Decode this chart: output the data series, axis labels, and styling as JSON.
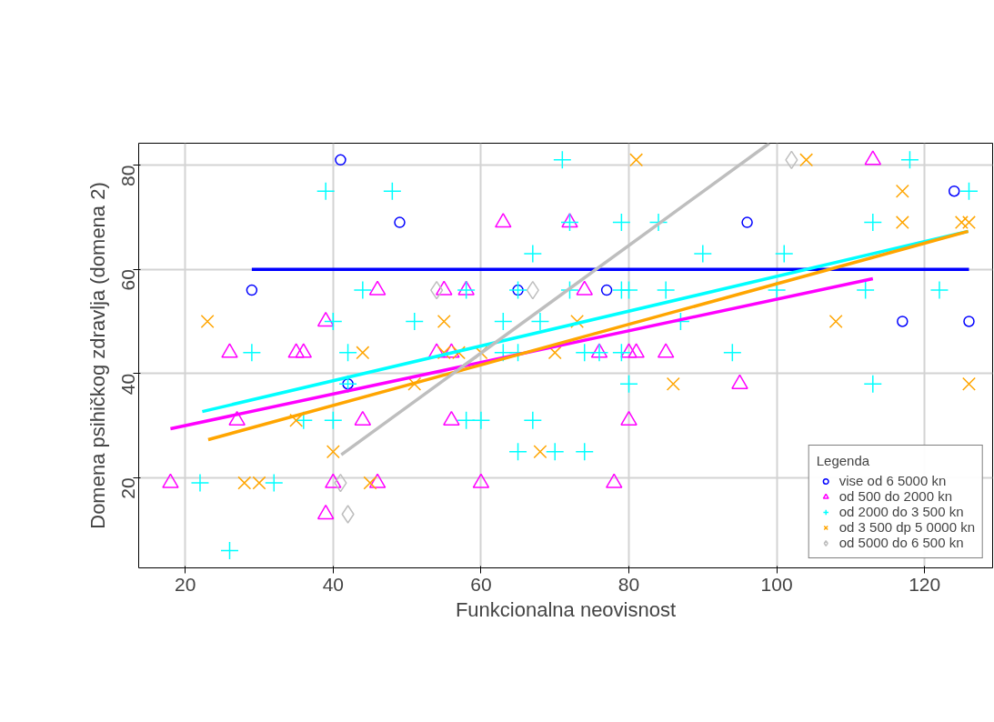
{
  "chart_data": {
    "type": "scatter",
    "xlabel": "Funkcionalna neovisnost",
    "ylabel": "Domena psihičkog zdravlja (domena 2)",
    "legend_title": "Legenda",
    "legend": "bottom right",
    "grid": true,
    "xlim": [
      13.7,
      129.2
    ],
    "ylim": [
      2.7,
      84.2
    ],
    "xticks": [
      20,
      40,
      60,
      80,
      100,
      120
    ],
    "yticks": [
      20,
      40,
      60,
      80
    ],
    "series": [
      {
        "name": "vise od 6 5000 kn",
        "color": "#0000ff",
        "marker": "circle",
        "x": [
          41,
          49,
          29,
          42,
          65,
          77,
          96,
          124,
          117,
          126
        ],
        "values": [
          81,
          69,
          56,
          38,
          56,
          56,
          69,
          75,
          50,
          50
        ]
      },
      {
        "name": "od 500 do 2000 kn",
        "color": "#ff00ff",
        "marker": "triangle",
        "x": [
          18,
          26,
          27,
          35,
          36,
          39,
          39,
          40,
          44,
          46,
          46,
          54,
          55,
          56,
          56,
          58,
          60,
          63,
          72,
          74,
          76,
          80,
          81,
          80,
          78,
          85,
          95,
          113
        ],
        "values": [
          19,
          44,
          31,
          44,
          44,
          50,
          13,
          19,
          31,
          56,
          19,
          44,
          56,
          44,
          31,
          56,
          19,
          69,
          69,
          56,
          44,
          44,
          44,
          31,
          19,
          44,
          38,
          81
        ]
      },
      {
        "name": "od 2000 do 3 500 kn",
        "color": "#00ffff",
        "marker": "cross",
        "x": [
          39,
          48,
          44,
          40,
          51,
          29,
          42,
          71,
          72,
          79,
          84,
          67,
          90,
          65,
          72,
          58,
          79,
          80,
          85,
          63,
          68,
          87,
          63,
          65,
          74,
          76,
          79,
          80,
          58,
          60,
          67,
          65,
          70,
          74,
          36,
          40,
          22,
          32,
          26,
          42,
          101,
          100,
          112,
          122,
          118,
          126,
          113,
          94,
          113
        ],
        "values": [
          75,
          75,
          56,
          50,
          50,
          44,
          44,
          81,
          69,
          69,
          69,
          63,
          63,
          56,
          56,
          56,
          56,
          56,
          56,
          50,
          50,
          50,
          44,
          44,
          44,
          44,
          44,
          38,
          31,
          31,
          31,
          25,
          25,
          25,
          31,
          31,
          19,
          19,
          6,
          38,
          63,
          56,
          56,
          56,
          81,
          75,
          69,
          44,
          38
        ]
      },
      {
        "name": "od 3 500 dp 5 0000 kn",
        "color": "#ffa500",
        "marker": "x",
        "x": [
          23,
          44,
          81,
          55,
          73,
          55,
          57,
          60,
          70,
          104,
          117,
          117,
          125,
          126,
          108,
          126,
          35,
          40,
          28,
          30,
          45,
          51,
          68,
          86
        ],
        "values": [
          50,
          44,
          81,
          50,
          50,
          44,
          44,
          44,
          44,
          81,
          75,
          69,
          69,
          69,
          50,
          38,
          31,
          25,
          19,
          19,
          19,
          38,
          25,
          38
        ]
      },
      {
        "name": "od 5000 do 6 500 kn",
        "color": "#bebebe",
        "marker": "diamond",
        "x": [
          54,
          67,
          41,
          42,
          102
        ],
        "values": [
          56,
          56,
          19,
          13,
          81
        ]
      },
      {
        "type": "line",
        "color": "#0000ff",
        "x": [
          29,
          126
        ],
        "values": [
          60,
          60
        ]
      },
      {
        "type": "line",
        "color": "#ff00ff",
        "x": [
          18,
          113
        ],
        "values": [
          29.4,
          58.2
        ]
      },
      {
        "type": "line",
        "color": "#00ffff",
        "x": [
          22.3,
          125.9
        ],
        "values": [
          32.7,
          67.3
        ]
      },
      {
        "type": "line",
        "color": "#ffa500",
        "x": [
          23.1,
          125.9
        ],
        "values": [
          27.3,
          67.3
        ]
      },
      {
        "type": "line",
        "color": "#bebebe",
        "x": [
          41.1,
          99
        ],
        "values": [
          24.4,
          84.2
        ]
      }
    ]
  }
}
